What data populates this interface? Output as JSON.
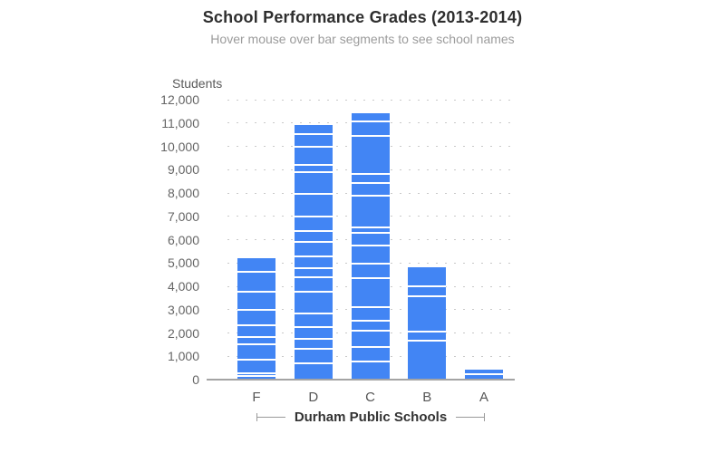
{
  "chart_data": {
    "type": "bar",
    "stacked": true,
    "title": "School Performance Grades (2013-2014)",
    "subtitle": "Hover mouse over bar segments to see school names",
    "ylabel": "Students",
    "group_label": "Durham Public Schools",
    "categories": [
      "F",
      "D",
      "C",
      "B",
      "A"
    ],
    "ylim": [
      0,
      12000
    ],
    "ytick_interval": 1000,
    "grid": "dotted-horizontal",
    "legend": "none",
    "bar_color": "#4285f4",
    "segment_gap_color": "#ffffff",
    "totals": {
      "F": 5220,
      "D": 10925,
      "C": 11430,
      "B": 4800,
      "A": 445
    },
    "segments_bottom_to_top": {
      "F": [
        195,
        115,
        580,
        660,
        310,
        505,
        660,
        775,
        855,
        565
      ],
      "D": [
        735,
        600,
        445,
        505,
        600,
        910,
        640,
        385,
        485,
        620,
        465,
        620,
        970,
        970,
        290,
        795,
        540,
        350
      ],
      "C": [
        815,
        620,
        680,
        445,
        580,
        1260,
        600,
        795,
        525,
        250,
        1355,
        525,
        385,
        1665,
        620,
        310
      ],
      "B": [
        1705,
        385,
        1510,
        425,
        775
      ],
      "A": [
        270,
        175
      ]
    }
  }
}
